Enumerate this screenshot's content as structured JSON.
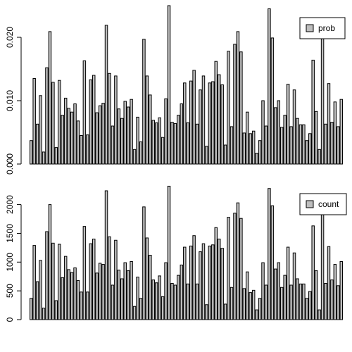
{
  "chart_data": [
    {
      "type": "bar",
      "title": "",
      "xlabel": "",
      "ylabel": "",
      "ylim": [
        0,
        0.025
      ],
      "yticks": [
        "0.000",
        "0.010",
        "0.020"
      ],
      "ytick_values": [
        0,
        0.01,
        0.02
      ],
      "legend": {
        "position": "top-right",
        "entries": [
          "prob"
        ]
      },
      "colors": {
        "fill": "#bebebe",
        "alt_fill": "#000000",
        "stroke": "#000000"
      },
      "series": [
        {
          "name": "prob",
          "values": [
            0.0037,
            0.0135,
            0.0063,
            0.0108,
            0.0019,
            0.0152,
            0.0209,
            0.0129,
            0.0026,
            0.0132,
            0.0077,
            0.0104,
            0.0088,
            0.0082,
            0.0095,
            0.0068,
            0.0045,
            0.0163,
            0.0046,
            0.0133,
            0.014,
            0.0081,
            0.0092,
            0.0096,
            0.0219,
            0.0143,
            0.006,
            0.0139,
            0.0087,
            0.0072,
            0.0099,
            0.009,
            0.0102,
            0.0023,
            0.0074,
            0.0035,
            0.0197,
            0.0139,
            0.0109,
            0.0069,
            0.0065,
            0.0073,
            0.0042,
            0.0103,
            0.025,
            0.0066,
            0.0064,
            0.0077,
            0.0095,
            0.0128,
            0.0065,
            0.0131,
            0.0148,
            0.0063,
            0.0117,
            0.0139,
            0.0028,
            0.0128,
            0.013,
            0.0162,
            0.0141,
            0.0125,
            0.003,
            0.0178,
            0.0059,
            0.0189,
            0.0209,
            0.0177,
            0.0049,
            0.0082,
            0.0048,
            0.0052,
            0.0017,
            0.0037,
            0.01,
            0.006,
            0.0245,
            0.0199,
            0.0089,
            0.01,
            0.0058,
            0.0077,
            0.0126,
            0.0059,
            0.0117,
            0.0072,
            0.0062,
            0.0062,
            0.0037,
            0.0048,
            0.0164,
            0.0083,
            0.0023,
            0.0203,
            0.0063,
            0.0127,
            0.0066,
            0.0098,
            0.0059,
            0.0102
          ]
        }
      ]
    },
    {
      "type": "bar",
      "title": "",
      "xlabel": "",
      "ylabel": "",
      "ylim": [
        0,
        2350
      ],
      "yticks": [
        "0",
        "500",
        "1000",
        "1500",
        "2000"
      ],
      "ytick_values": [
        0,
        500,
        1000,
        1500,
        2000
      ],
      "legend": {
        "position": "top-right",
        "entries": [
          "count"
        ]
      },
      "colors": {
        "fill": "#bebebe",
        "alt_fill": "#000000",
        "stroke": "#000000"
      },
      "series": [
        {
          "name": "count",
          "values": [
            370,
            1290,
            660,
            1030,
            200,
            1530,
            2000,
            1330,
            330,
            1310,
            730,
            1100,
            870,
            820,
            900,
            680,
            480,
            1620,
            480,
            1320,
            1400,
            810,
            980,
            960,
            2240,
            1440,
            600,
            1380,
            860,
            710,
            990,
            850,
            1010,
            230,
            740,
            370,
            1960,
            1420,
            1120,
            690,
            640,
            760,
            400,
            990,
            2320,
            630,
            600,
            770,
            950,
            1260,
            620,
            1280,
            1460,
            620,
            1180,
            1320,
            260,
            1280,
            1300,
            1600,
            1400,
            1240,
            270,
            1780,
            560,
            1850,
            2030,
            1760,
            540,
            830,
            470,
            510,
            170,
            370,
            990,
            600,
            2280,
            1980,
            880,
            990,
            560,
            770,
            1260,
            600,
            1160,
            710,
            620,
            620,
            370,
            490,
            1630,
            850,
            170,
            1950,
            630,
            1270,
            690,
            960,
            590,
            1010
          ]
        }
      ]
    }
  ]
}
